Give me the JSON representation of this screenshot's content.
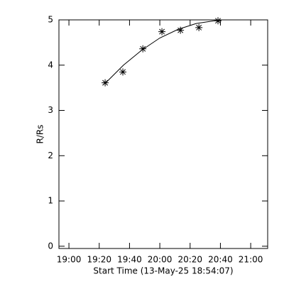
{
  "chart_data": {
    "type": "scatter",
    "x_label": "Start Time (13-May-25 18:54:07)",
    "y_label": "R/Rs",
    "xlim": [
      1133.4,
      1271.2
    ],
    "ylim": [
      -0.05,
      5.0
    ],
    "xticks": [
      {
        "value": 1140,
        "label": "19:00"
      },
      {
        "value": 1160,
        "label": "19:20"
      },
      {
        "value": 1180,
        "label": "19:40"
      },
      {
        "value": 1200,
        "label": "20:00"
      },
      {
        "value": 1220,
        "label": "20:20"
      },
      {
        "value": 1240,
        "label": "20:40"
      },
      {
        "value": 1260,
        "label": "21:00"
      }
    ],
    "yticks": [
      0,
      1,
      2,
      3,
      4,
      5
    ],
    "color": "#000000",
    "x": [
      1163.9,
      1175.6,
      1188.8,
      1201.4,
      1213.6,
      1225.8,
      1238.4
    ],
    "values": [
      3.61,
      3.85,
      4.36,
      4.74,
      4.77,
      4.83,
      4.98
    ],
    "fit": {
      "x": [
        1164,
        1176,
        1188,
        1200,
        1212,
        1224,
        1236,
        1240
      ],
      "values": [
        3.6,
        4.0,
        4.33,
        4.6,
        4.79,
        4.92,
        4.98,
        4.98
      ]
    }
  }
}
